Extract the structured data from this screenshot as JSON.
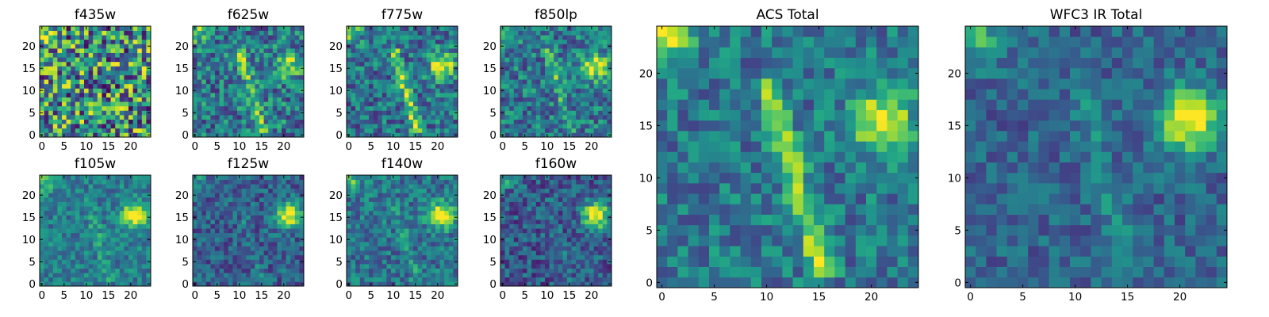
{
  "chart_data": [
    {
      "type": "heatmap",
      "title": "f435w",
      "grid_size": [
        25,
        25
      ],
      "x_ticks": [
        "0",
        "5",
        "10",
        "15",
        "20"
      ],
      "y_ticks": [
        "0",
        "5",
        "10",
        "15",
        "20"
      ],
      "colormap": "viridis",
      "features": "noise dominated, brighter upper-left corner"
    },
    {
      "type": "heatmap",
      "title": "f625w",
      "grid_size": [
        25,
        25
      ],
      "x_ticks": [
        "0",
        "5",
        "10",
        "15",
        "20"
      ],
      "y_ticks": [
        "0",
        "5",
        "10",
        "15",
        "20"
      ],
      "colormap": "viridis",
      "features": "faint source near (21,16), diagonal feature"
    },
    {
      "type": "heatmap",
      "title": "f775w",
      "grid_size": [
        25,
        25
      ],
      "x_ticks": [
        "0",
        "5",
        "10",
        "15",
        "20"
      ],
      "y_ticks": [
        "0",
        "5",
        "10",
        "15",
        "20"
      ],
      "colormap": "viridis",
      "features": "source near (21,16), diagonal arc"
    },
    {
      "type": "heatmap",
      "title": "f850lp",
      "grid_size": [
        25,
        25
      ],
      "x_ticks": [
        "0",
        "5",
        "10",
        "15",
        "20"
      ],
      "y_ticks": [
        "0",
        "5",
        "10",
        "15",
        "20"
      ],
      "colormap": "viridis",
      "features": "source near (21,16)"
    },
    {
      "type": "heatmap",
      "title": "f105w",
      "grid_size": [
        25,
        25
      ],
      "x_ticks": [
        "0",
        "5",
        "10",
        "15",
        "20"
      ],
      "y_ticks": [
        "0",
        "5",
        "10",
        "15",
        "20"
      ],
      "colormap": "viridis",
      "features": "source near (21,16)"
    },
    {
      "type": "heatmap",
      "title": "f125w",
      "grid_size": [
        25,
        25
      ],
      "x_ticks": [
        "0",
        "5",
        "10",
        "15",
        "20"
      ],
      "y_ticks": [
        "0",
        "5",
        "10",
        "15",
        "20"
      ],
      "colormap": "viridis",
      "features": "source near (21,16)"
    },
    {
      "type": "heatmap",
      "title": "f140w",
      "grid_size": [
        25,
        25
      ],
      "x_ticks": [
        "0",
        "5",
        "10",
        "15",
        "20"
      ],
      "y_ticks": [
        "0",
        "5",
        "10",
        "15",
        "20"
      ],
      "colormap": "viridis",
      "features": "source near (21,16)"
    },
    {
      "type": "heatmap",
      "title": "f160w",
      "grid_size": [
        25,
        25
      ],
      "x_ticks": [
        "0",
        "5",
        "10",
        "15",
        "20"
      ],
      "y_ticks": [
        "0",
        "5",
        "10",
        "15",
        "20"
      ],
      "colormap": "viridis",
      "features": "compact source near (21,16)"
    },
    {
      "type": "heatmap",
      "title": "ACS Total",
      "grid_size": [
        25,
        25
      ],
      "x_ticks": [
        "0",
        "5",
        "10",
        "15",
        "20"
      ],
      "y_ticks": [
        "0",
        "5",
        "10",
        "15",
        "20"
      ],
      "colormap": "viridis",
      "features": "source near (21,16), diagonal arc to (15,2)"
    },
    {
      "type": "heatmap",
      "title": "WFC3 IR Total",
      "grid_size": [
        25,
        25
      ],
      "x_ticks": [
        "0",
        "5",
        "10",
        "15",
        "20"
      ],
      "y_ticks": [
        "0",
        "5",
        "10",
        "15",
        "20"
      ],
      "colormap": "viridis",
      "features": "bright extended source near (21,16)"
    }
  ]
}
